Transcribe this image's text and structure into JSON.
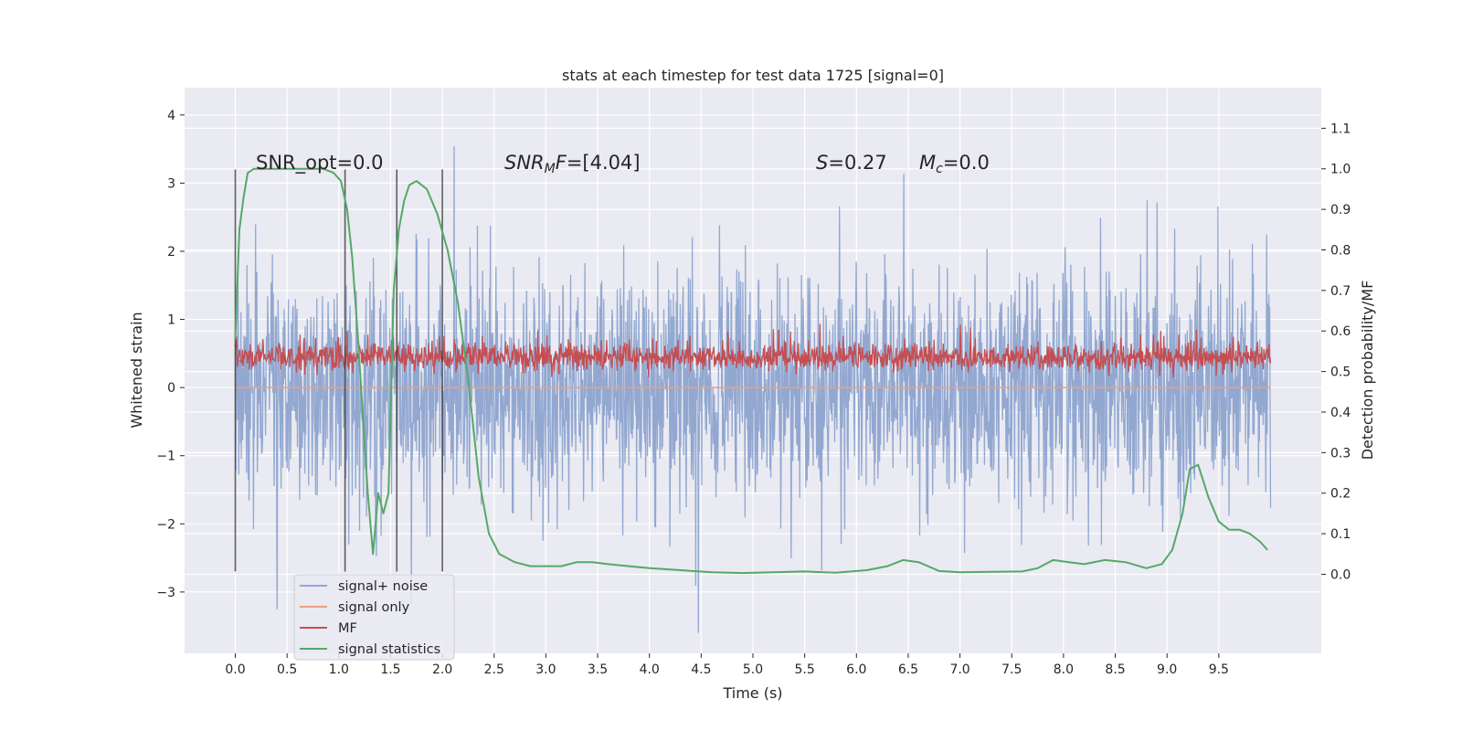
{
  "chart_data": {
    "type": "line",
    "title": "stats at each timestep for test data 1725 [signal=0]",
    "xlabel": "Time (s)",
    "ylabel": "Whitened strain",
    "y2label": "Detection probability/MF",
    "xlim": [
      -0.49,
      10.49
    ],
    "ylim": [
      -3.9,
      4.4
    ],
    "y2lim": [
      -0.195,
      1.2
    ],
    "x_ticks": [
      0.0,
      0.5,
      1.0,
      1.5,
      2.0,
      2.5,
      3.0,
      3.5,
      4.0,
      4.5,
      5.0,
      5.5,
      6.0,
      6.5,
      7.0,
      7.5,
      8.0,
      8.5,
      9.0,
      9.5
    ],
    "x_tick_labels": [
      "0.0",
      "0.5",
      "1.0",
      "1.5",
      "2.0",
      "2.5",
      "3.0",
      "3.5",
      "4.0",
      "4.5",
      "5.0",
      "5.5",
      "6.0",
      "6.5",
      "7.0",
      "7.5",
      "8.0",
      "8.5",
      "9.0",
      "9.5"
    ],
    "y_ticks": [
      4,
      3,
      2,
      1,
      0,
      -1,
      -2,
      -3
    ],
    "y_tick_labels": [
      "4",
      "3",
      "2",
      "1",
      "0",
      "−1",
      "−2",
      "−3"
    ],
    "y2_ticks": [
      1.1,
      1.0,
      0.9,
      0.8,
      0.7,
      0.6,
      0.5,
      0.4,
      0.3,
      0.2,
      0.1,
      0.0
    ],
    "y2_tick_labels": [
      "1.1",
      "1.0",
      "0.9",
      "0.8",
      "0.7",
      "0.6",
      "0.5",
      "0.4",
      "0.3",
      "0.2",
      "0.1",
      "0.0"
    ],
    "grid": true,
    "legend_position": "lower-left",
    "annotations": {
      "snr_opt": "SNR_opt=0.0",
      "snr_mf_base": "SNR",
      "snr_mf_sub": "M",
      "snr_mf_tail": "F",
      "snr_mf_value": "=[4.04]",
      "s_italic": "S",
      "s_value": "=0.27",
      "mc_base": "M",
      "mc_sub": "c",
      "mc_value": "=0.0"
    },
    "vertical_markers_x": [
      0.0,
      1.06,
      1.56,
      2.0
    ],
    "series": [
      {
        "name": "signal+ noise",
        "color": "#92a8d1",
        "axis": "left",
        "style": "dense noise, approx. range -3.5 to 4.0",
        "x_range": [
          0.0,
          10.0
        ]
      },
      {
        "name": "signal only",
        "color": "#eba07e",
        "axis": "left",
        "x_range": [
          0.0,
          10.0
        ],
        "constant_value": 0.0
      },
      {
        "name": "MF",
        "color": "#c44e52",
        "axis": "right",
        "style": "dense noise, approx. range 0.46 to 0.62",
        "x_range": [
          0.0,
          10.0
        ]
      },
      {
        "name": "signal statistics",
        "color": "#55a868",
        "axis": "right",
        "x": [
          0.0,
          0.04,
          0.08,
          0.12,
          0.18,
          0.3,
          0.5,
          0.7,
          0.85,
          0.95,
          1.02,
          1.08,
          1.13,
          1.18,
          1.23,
          1.28,
          1.33,
          1.38,
          1.43,
          1.48,
          1.53,
          1.58,
          1.63,
          1.68,
          1.75,
          1.85,
          1.95,
          2.05,
          2.15,
          2.25,
          2.35,
          2.45,
          2.55,
          2.7,
          2.85,
          3.0,
          3.15,
          3.3,
          3.45,
          3.6,
          3.8,
          4.0,
          4.3,
          4.6,
          4.9,
          5.2,
          5.5,
          5.8,
          6.1,
          6.3,
          6.45,
          6.6,
          6.8,
          7.0,
          7.3,
          7.6,
          7.75,
          7.9,
          8.05,
          8.2,
          8.4,
          8.6,
          8.8,
          8.95,
          9.05,
          9.15,
          9.22,
          9.3,
          9.4,
          9.5,
          9.6,
          9.7,
          9.8,
          9.9,
          9.97
        ],
        "y": [
          0.58,
          0.85,
          0.93,
          0.99,
          1.0,
          1.0,
          1.0,
          1.0,
          1.0,
          0.99,
          0.97,
          0.9,
          0.78,
          0.6,
          0.4,
          0.2,
          0.05,
          0.2,
          0.15,
          0.2,
          0.7,
          0.85,
          0.92,
          0.96,
          0.97,
          0.95,
          0.89,
          0.8,
          0.67,
          0.48,
          0.24,
          0.1,
          0.05,
          0.03,
          0.02,
          0.02,
          0.02,
          0.03,
          0.03,
          0.025,
          0.02,
          0.015,
          0.01,
          0.005,
          0.003,
          0.005,
          0.007,
          0.004,
          0.01,
          0.02,
          0.035,
          0.03,
          0.008,
          0.005,
          0.006,
          0.007,
          0.015,
          0.035,
          0.03,
          0.025,
          0.035,
          0.03,
          0.015,
          0.025,
          0.06,
          0.15,
          0.26,
          0.27,
          0.19,
          0.13,
          0.11,
          0.11,
          0.1,
          0.08,
          0.06
        ]
      }
    ]
  }
}
